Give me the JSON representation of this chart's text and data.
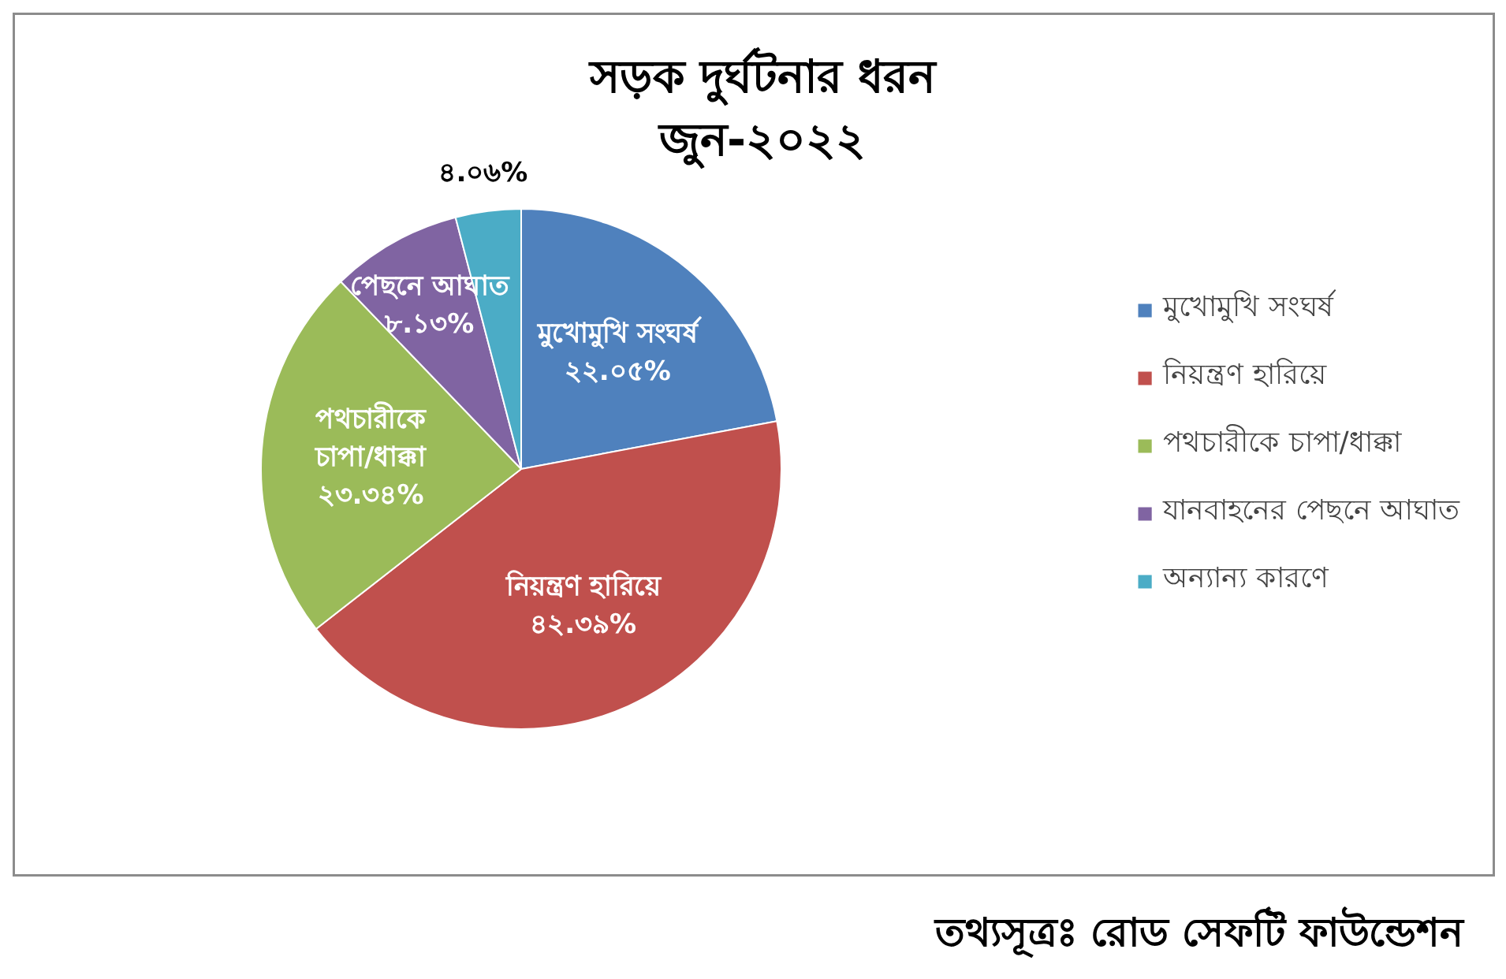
{
  "chart_data": {
    "type": "pie",
    "title": "সড়ক দুর্ঘটনার ধরন",
    "subtitle": "জুন-২০২২",
    "categories": [
      "মুখোমুখি সংঘর্ষ",
      "নিয়ন্ত্রণ হারিয়ে",
      "পথচারীকে চাপা/ধাক্কা",
      "যানবাহনের পেছনে আঘাত",
      "অন্যান্য কারণে"
    ],
    "values": [
      22.05,
      42.39,
      23.34,
      8.13,
      4.06
    ],
    "colors": [
      "#4f81bd",
      "#c0504d",
      "#9bbb59",
      "#8064a2",
      "#4bacc6"
    ],
    "value_labels": [
      "মুখোমুখি সংঘর্ষ\n২২.০৫%",
      "নিয়ন্ত্রণ হারিয়ে\n৪২.৩৯%",
      "পথচারীকে\nচাপা/ধাক্কা\n২৩.৩৪%",
      "পেছনে আঘাত\n৮.১৩%",
      "৪.০৬%"
    ],
    "legend": "right",
    "annotations": [
      "তথ্যসূত্রঃ রোড সেফটি ফাউন্ডেশন"
    ]
  }
}
